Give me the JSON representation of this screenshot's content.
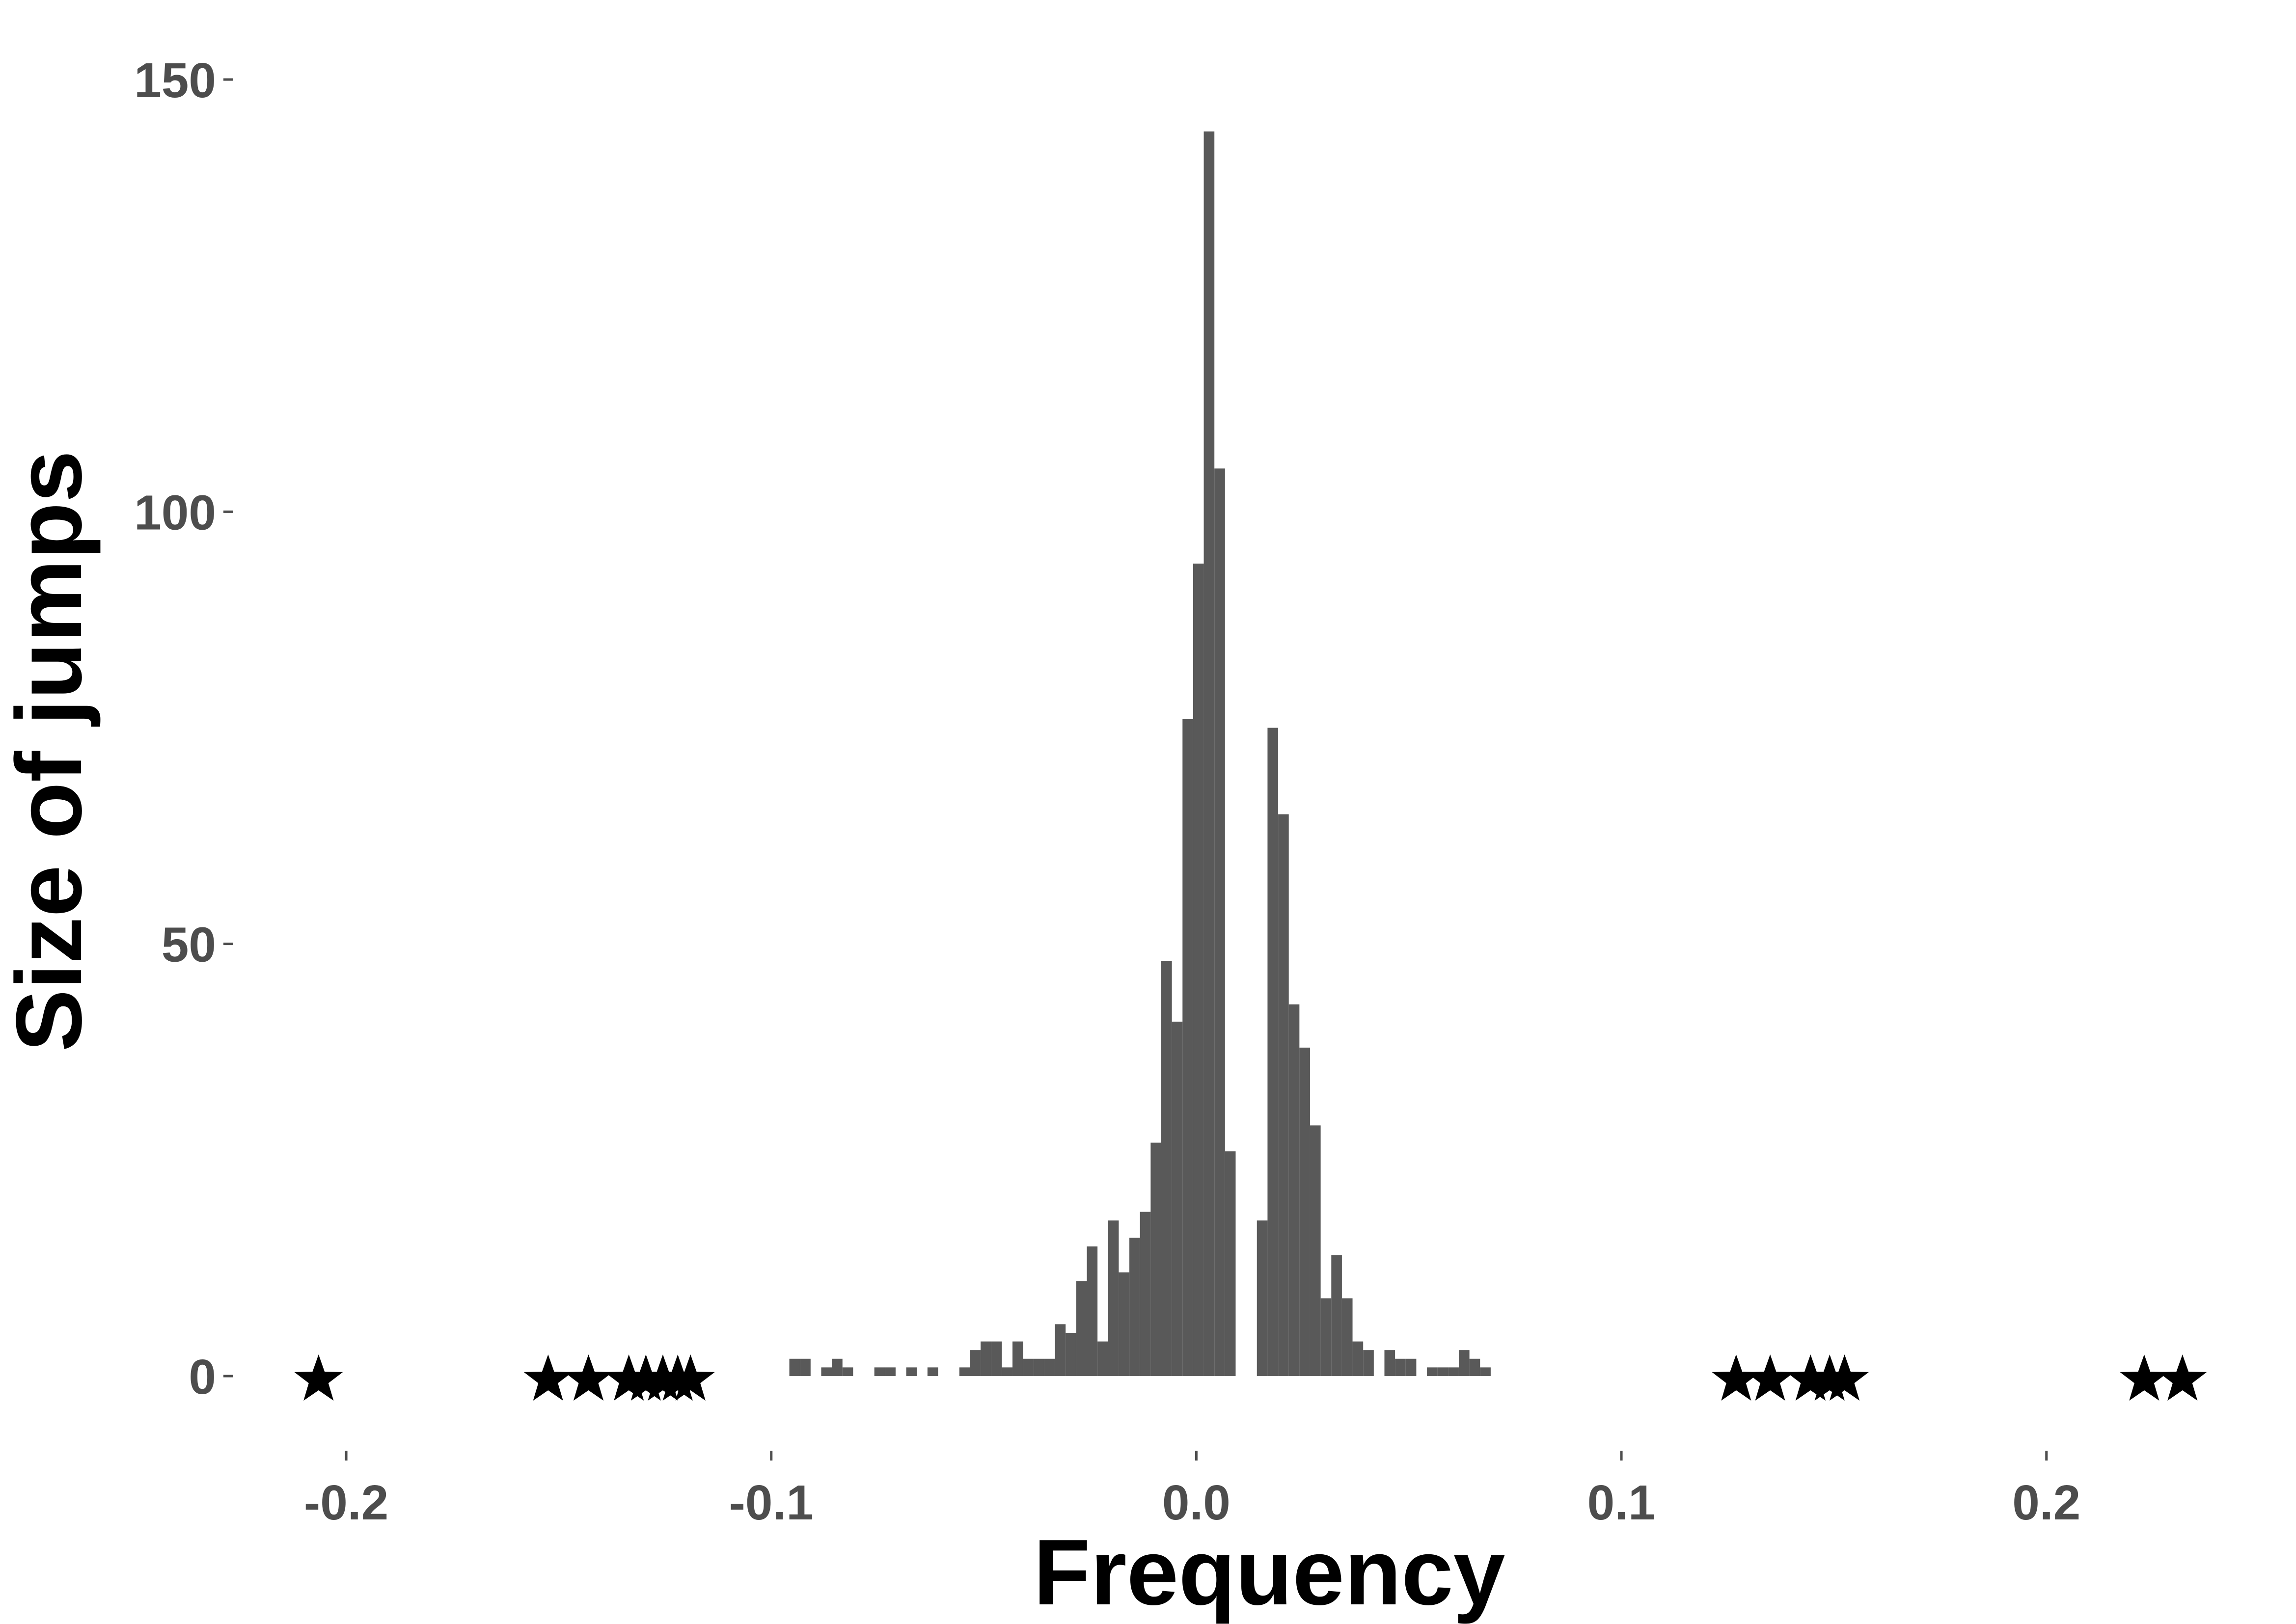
{
  "chart_data": {
    "type": "bar",
    "title": "",
    "xlabel": "Frequency",
    "ylabel": "Size of jumps",
    "xlim": [
      -0.226,
      0.243
    ],
    "ylim": [
      -7.5,
      157.5
    ],
    "x_ticks": [
      -0.2,
      -0.1,
      0.0,
      0.1,
      0.2
    ],
    "x_tick_labels": [
      "-0.2",
      "-0.1",
      "0.0",
      "0.1",
      "0.2"
    ],
    "y_ticks": [
      0,
      50,
      100,
      150
    ],
    "y_tick_labels": [
      "0",
      "50",
      "100",
      "150"
    ],
    "grid": false,
    "legend": "none",
    "bar_color": "#595959",
    "marker_color": "#000000",
    "bin_width": 0.0025,
    "series": [
      {
        "name": "",
        "kind": "histogram",
        "bins": [
          {
            "x": -0.0945,
            "y": 2
          },
          {
            "x": -0.092,
            "y": 2
          },
          {
            "x": -0.087,
            "y": 1
          },
          {
            "x": -0.0845,
            "y": 2
          },
          {
            "x": -0.082,
            "y": 1
          },
          {
            "x": -0.0745,
            "y": 1
          },
          {
            "x": -0.072,
            "y": 1
          },
          {
            "x": -0.067,
            "y": 1
          },
          {
            "x": -0.062,
            "y": 1
          },
          {
            "x": -0.0545,
            "y": 1
          },
          {
            "x": -0.052,
            "y": 3
          },
          {
            "x": -0.0495,
            "y": 4
          },
          {
            "x": -0.047,
            "y": 4
          },
          {
            "x": -0.0445,
            "y": 1
          },
          {
            "x": -0.042,
            "y": 4
          },
          {
            "x": -0.0395,
            "y": 2
          },
          {
            "x": -0.037,
            "y": 2
          },
          {
            "x": -0.0345,
            "y": 2
          },
          {
            "x": -0.032,
            "y": 6
          },
          {
            "x": -0.0295,
            "y": 5
          },
          {
            "x": -0.027,
            "y": 11
          },
          {
            "x": -0.0245,
            "y": 15
          },
          {
            "x": -0.022,
            "y": 4
          },
          {
            "x": -0.0195,
            "y": 18
          },
          {
            "x": -0.017,
            "y": 12
          },
          {
            "x": -0.0145,
            "y": 16
          },
          {
            "x": -0.012,
            "y": 19
          },
          {
            "x": -0.0095,
            "y": 27
          },
          {
            "x": -0.007,
            "y": 48
          },
          {
            "x": -0.0045,
            "y": 41
          },
          {
            "x": -0.002,
            "y": 76
          },
          {
            "x": 0.0005,
            "y": 94
          },
          {
            "x": 0.003,
            "y": 144
          },
          {
            "x": 0.0055,
            "y": 105
          },
          {
            "x": 0.008,
            "y": 26
          },
          {
            "x": 0.0155,
            "y": 18
          },
          {
            "x": 0.018,
            "y": 75
          },
          {
            "x": 0.0205,
            "y": 65
          },
          {
            "x": 0.023,
            "y": 43
          },
          {
            "x": 0.0255,
            "y": 38
          },
          {
            "x": 0.028,
            "y": 29
          },
          {
            "x": 0.0305,
            "y": 9
          },
          {
            "x": 0.033,
            "y": 14
          },
          {
            "x": 0.0355,
            "y": 9
          },
          {
            "x": 0.038,
            "y": 4
          },
          {
            "x": 0.0405,
            "y": 3
          },
          {
            "x": 0.0455,
            "y": 3
          },
          {
            "x": 0.048,
            "y": 2
          },
          {
            "x": 0.0505,
            "y": 2
          },
          {
            "x": 0.0555,
            "y": 1
          },
          {
            "x": 0.058,
            "y": 1
          },
          {
            "x": 0.0605,
            "y": 1
          },
          {
            "x": 0.063,
            "y": 3
          },
          {
            "x": 0.0655,
            "y": 2
          },
          {
            "x": 0.068,
            "y": 1
          }
        ]
      },
      {
        "name": "",
        "kind": "points",
        "marker": "star",
        "points": [
          {
            "x": -0.2065,
            "y": 0
          },
          {
            "x": -0.1525,
            "y": 0
          },
          {
            "x": -0.143,
            "y": 0
          },
          {
            "x": -0.1335,
            "y": 0
          },
          {
            "x": -0.1295,
            "y": 0
          },
          {
            "x": -0.1255,
            "y": 0
          },
          {
            "x": -0.122,
            "y": 0
          },
          {
            "x": -0.119,
            "y": 0
          },
          {
            "x": 0.127,
            "y": 0
          },
          {
            "x": 0.135,
            "y": 0
          },
          {
            "x": 0.1445,
            "y": 0
          },
          {
            "x": 0.149,
            "y": 0
          },
          {
            "x": 0.1525,
            "y": 0
          },
          {
            "x": 0.223,
            "y": 0
          },
          {
            "x": 0.232,
            "y": 0
          }
        ]
      }
    ]
  }
}
